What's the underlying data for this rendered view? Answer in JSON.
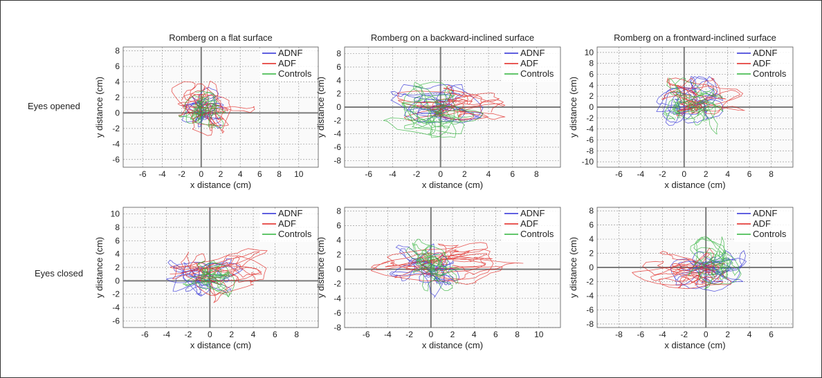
{
  "row_labels": [
    "Eyes opened",
    "Eyes closed"
  ],
  "colors": {
    "ADNF": "#2b2bd6",
    "ADF": "#e0201c",
    "Controls": "#2fb33a"
  },
  "chart_data": [
    {
      "type": "line",
      "title": "Romberg on a flat surface",
      "xlabel": "x distance (cm)",
      "ylabel": "y distance (cm)",
      "xlim": [
        -8,
        12
      ],
      "ylim": [
        -7,
        8.5
      ],
      "xticks": [
        -6,
        -4,
        -2,
        0,
        2,
        4,
        6,
        8,
        10
      ],
      "yticks": [
        -6,
        -4,
        -2,
        0,
        2,
        4,
        6,
        8
      ],
      "grid": true,
      "legend": "top-right",
      "series": [
        {
          "name": "ADNF",
          "center": [
            0.3,
            0.6
          ],
          "spread": [
            1.4,
            1.7
          ]
        },
        {
          "name": "ADF",
          "center": [
            1.0,
            0.6
          ],
          "spread": [
            2.8,
            2.2
          ]
        },
        {
          "name": "Controls",
          "center": [
            0.1,
            0.6
          ],
          "spread": [
            1.5,
            1.6
          ]
        }
      ]
    },
    {
      "type": "line",
      "title": "Romberg on a backward-inclined surface",
      "xlabel": "x distance (cm)",
      "ylabel": "y distance (cm)",
      "xlim": [
        -8,
        10
      ],
      "ylim": [
        -9,
        9
      ],
      "xticks": [
        -6,
        -4,
        -2,
        0,
        2,
        4,
        6,
        8
      ],
      "yticks": [
        -8,
        -6,
        -4,
        -2,
        0,
        2,
        4,
        6,
        8
      ],
      "grid": true,
      "legend": "top-right",
      "series": [
        {
          "name": "ADNF",
          "center": [
            -0.3,
            0.5
          ],
          "spread": [
            2.4,
            1.8
          ]
        },
        {
          "name": "ADF",
          "center": [
            0.9,
            0.4
          ],
          "spread": [
            2.8,
            1.8
          ]
        },
        {
          "name": "Controls",
          "center": [
            -0.6,
            -0.4
          ],
          "spread": [
            2.6,
            2.6
          ]
        }
      ]
    },
    {
      "type": "line",
      "title": "Romberg on a frontward-inclined surface",
      "xlabel": "x distance (cm)",
      "ylabel": "y distance (cm)",
      "xlim": [
        -8,
        10
      ],
      "ylim": [
        -11,
        11
      ],
      "xticks": [
        -6,
        -4,
        -2,
        0,
        2,
        4,
        6,
        8
      ],
      "yticks": [
        -10,
        -8,
        -6,
        -4,
        -2,
        0,
        2,
        4,
        6,
        8,
        10
      ],
      "grid": true,
      "legend": "top-right",
      "series": [
        {
          "name": "ADNF",
          "center": [
            0.5,
            0.8
          ],
          "spread": [
            1.9,
            3.0
          ]
        },
        {
          "name": "ADF",
          "center": [
            1.4,
            1.5
          ],
          "spread": [
            2.6,
            2.4
          ]
        },
        {
          "name": "Controls",
          "center": [
            0.7,
            0.2
          ],
          "spread": [
            1.8,
            3.2
          ]
        }
      ]
    },
    {
      "type": "line",
      "title": "",
      "xlabel": "x distance (cm)",
      "ylabel": "y distance (cm)",
      "xlim": [
        -8,
        10
      ],
      "ylim": [
        -7,
        11
      ],
      "xticks": [
        -6,
        -4,
        -2,
        0,
        2,
        4,
        6,
        8
      ],
      "yticks": [
        -6,
        -4,
        -2,
        0,
        2,
        4,
        6,
        8,
        10
      ],
      "grid": true,
      "legend": "top-right",
      "series": [
        {
          "name": "ADNF",
          "center": [
            -0.5,
            0.6
          ],
          "spread": [
            2.2,
            1.8
          ]
        },
        {
          "name": "ADF",
          "center": [
            0.8,
            1.2
          ],
          "spread": [
            2.8,
            2.8
          ]
        },
        {
          "name": "Controls",
          "center": [
            0.0,
            0.3
          ],
          "spread": [
            1.7,
            1.7
          ]
        }
      ]
    },
    {
      "type": "line",
      "title": "",
      "xlabel": "x distance (cm)",
      "ylabel": "y distance (cm)",
      "xlim": [
        -8,
        12
      ],
      "ylim": [
        -8,
        8.5
      ],
      "xticks": [
        -6,
        -4,
        -2,
        0,
        2,
        4,
        6,
        8,
        10
      ],
      "yticks": [
        -8,
        -6,
        -4,
        -2,
        0,
        2,
        4,
        6,
        8
      ],
      "grid": true,
      "legend": "top-right",
      "series": [
        {
          "name": "ADNF",
          "center": [
            -0.3,
            -0.2
          ],
          "spread": [
            2.2,
            2.3
          ]
        },
        {
          "name": "ADF",
          "center": [
            1.5,
            0.8
          ],
          "spread": [
            4.4,
            1.8
          ]
        },
        {
          "name": "Controls",
          "center": [
            0.1,
            0.7
          ],
          "spread": [
            1.6,
            2.3
          ]
        }
      ]
    },
    {
      "type": "line",
      "title": "",
      "xlabel": "x distance (cm)",
      "ylabel": "y distance (cm)",
      "xlim": [
        -10,
        8
      ],
      "ylim": [
        -8.5,
        8.5
      ],
      "xticks": [
        -8,
        -6,
        -4,
        -2,
        0,
        2,
        4,
        6
      ],
      "yticks": [
        -8,
        -6,
        -4,
        -2,
        0,
        2,
        4,
        6,
        8
      ],
      "grid": true,
      "legend": "top-right",
      "series": [
        {
          "name": "ADNF",
          "center": [
            0.3,
            -0.5
          ],
          "spread": [
            2.4,
            1.8
          ]
        },
        {
          "name": "ADF",
          "center": [
            -1.5,
            -0.6
          ],
          "spread": [
            3.3,
            2.1
          ]
        },
        {
          "name": "Controls",
          "center": [
            0.8,
            0.5
          ],
          "spread": [
            1.7,
            2.4
          ]
        }
      ]
    }
  ]
}
